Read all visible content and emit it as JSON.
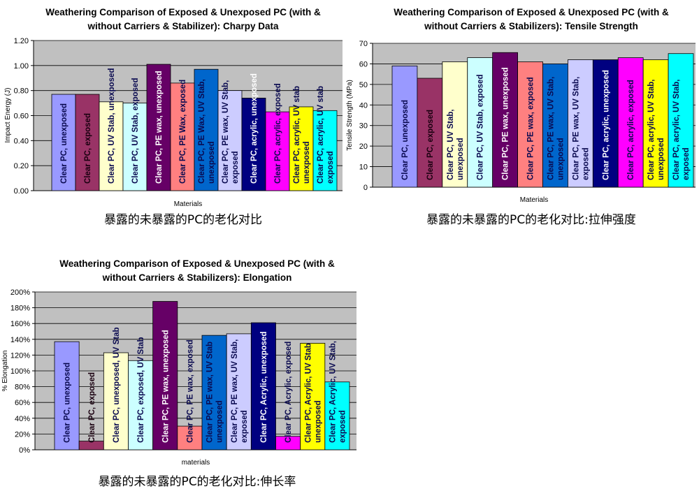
{
  "bar_colors": [
    "#9999ff",
    "#993366",
    "#ffffcc",
    "#ccffff",
    "#660066",
    "#ff8080",
    "#0066cc",
    "#ccccff",
    "#000080",
    "#ff00ff",
    "#ffff00",
    "#00ffff"
  ],
  "plot_background": "#c0c0c0",
  "chart_data": [
    {
      "type": "bar",
      "title": [
        "Weathering Comparison of Exposed & Unexposed PC (with &",
        "without Carriers & Stabilizer):  Charpy Data"
      ],
      "xlabel": "Materials",
      "ylabel": "Impact Energy (J)",
      "ylim": [
        0,
        1.2
      ],
      "yticks": [
        "0.00",
        "0.20",
        "0.40",
        "0.60",
        "0.80",
        "1.00",
        "1.20"
      ],
      "grid": true,
      "caption": "暴露的未暴露的PC的老化对比",
      "categories": [
        [
          "Clear PC, unexposed"
        ],
        [
          "Clear PC, exposed"
        ],
        [
          "Clear PC, UV Stab, unexposed"
        ],
        [
          "Clear PC, UV Stab, exposed"
        ],
        [
          "Clear PC, PE wax, unexposed"
        ],
        [
          "Clear PC, PE Wax, exposed"
        ],
        [
          "Clear PC, PE Wax, UV Stab,",
          "unexposed"
        ],
        [
          "Clear PC, PE wax, UV Stab,",
          "exposed"
        ],
        [
          "Clear PC, acrylic, unexposed"
        ],
        [
          "Clear PC, acrylic, exposed"
        ],
        [
          "Clear PC, acrylic, UV stab",
          "unexposed"
        ],
        [
          "Clear PC, acrylic, UV stab",
          "exposed"
        ]
      ],
      "values": [
        0.77,
        0.77,
        0.71,
        0.7,
        1.01,
        0.86,
        0.97,
        0.8,
        0.74,
        0.63,
        0.67,
        0.64
      ]
    },
    {
      "type": "bar",
      "title": [
        "Weathering Comparison of Exposed & Unexposed PC (with &",
        "without Carriers & Stabilizers):  Tensile Strength"
      ],
      "xlabel": "Materials",
      "ylabel": "Tensile Strength (MPa)",
      "ylim": [
        0,
        70
      ],
      "yticks": [
        "0",
        "10",
        "20",
        "30",
        "40",
        "50",
        "60",
        "70"
      ],
      "grid": true,
      "caption": "暴露的未暴露的PC的老化对比:拉伸强度",
      "categories": [
        [
          "Clear PC, unexposed"
        ],
        [
          "Clear PC, exposed"
        ],
        [
          "Clear PC, UV Stab,",
          "unexposed"
        ],
        [
          "Clear PC, UV Stab, exposed"
        ],
        [
          "Clear PC, PE wax, unexposed"
        ],
        [
          "Clear PC, PE wax, exposed"
        ],
        [
          "Clear PC, PE wax, UV Stab,",
          "unexposed"
        ],
        [
          "Clear PC, PE wax, UV Stab,",
          "exposed"
        ],
        [
          "Clear PC, acrylic, unexposed"
        ],
        [
          "Clear PC, acrylic, exposed"
        ],
        [
          "Clear PC, acrylic, UV Stab,",
          "unexposed"
        ],
        [
          "Clear PC, acrylic, UV Stab,",
          "exposed"
        ]
      ],
      "values": [
        59,
        53,
        61,
        63,
        65.5,
        61,
        60,
        62,
        62,
        63,
        62,
        65
      ]
    },
    {
      "type": "bar",
      "title": [
        "Weathering Comparison of Exposed & Unexposed PC (with &",
        "without Carriers & Stabilizers):  Elongation"
      ],
      "xlabel": "materials",
      "ylabel": "% Elongation",
      "ylim": [
        0,
        200
      ],
      "yticks": [
        "0%",
        "20%",
        "40%",
        "60%",
        "80%",
        "100%",
        "120%",
        "140%",
        "160%",
        "180%",
        "200%"
      ],
      "grid": true,
      "caption": "暴露的未暴露的PC的老化对比:伸长率",
      "categories": [
        [
          "Clear PC, unexposed"
        ],
        [
          "Clear PC, exposed"
        ],
        [
          "Clear PC, unexposed, UV Stab"
        ],
        [
          "Clear PC, exposed, UV Stab"
        ],
        [
          "Clear PC, PE wax, unexposed"
        ],
        [
          "Clear PC, PE wax, exposed"
        ],
        [
          "Clear PC, PE wax, UV Stab",
          "unexposed"
        ],
        [
          "Clear PC, PE wax, UV Stab,",
          "exposed"
        ],
        [
          "Clear PC, Acrylic, unexposed"
        ],
        [
          "Clear PC, Acrylic, exposed"
        ],
        [
          "Clear PC, Acrylic, UV Stab",
          "unexposed"
        ],
        [
          "Clear PC, Acrylic, UV Stab,",
          "exposed"
        ]
      ],
      "values": [
        137,
        11,
        123,
        113,
        188,
        30,
        145,
        147,
        161,
        17,
        135,
        86
      ]
    }
  ]
}
